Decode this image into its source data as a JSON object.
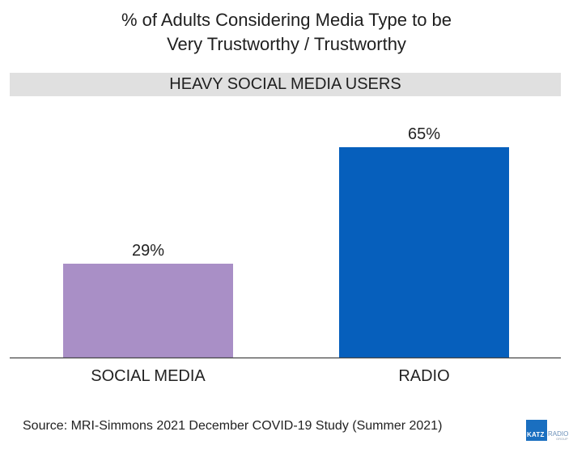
{
  "chart_data": {
    "type": "bar",
    "title_lines": [
      "% of Adults Considering Media Type to be",
      "Very Trustworthy / Trustworthy"
    ],
    "subtitle": "HEAVY SOCIAL MEDIA USERS",
    "categories": [
      "SOCIAL MEDIA",
      "RADIO"
    ],
    "values": [
      29,
      65
    ],
    "value_labels": [
      "29%",
      "65%"
    ],
    "colors": [
      "#a98fc6",
      "#065fbc"
    ],
    "ylim": [
      0,
      65
    ],
    "grid": false,
    "xlabel": "",
    "ylabel": ""
  },
  "source": "Source: MRI-Simmons 2021 December COVID-19 Study (Summer 2021)",
  "logo": {
    "brand": "KATZ",
    "name": "RADIO",
    "group": "GROUP",
    "color": "#1a6fc0"
  }
}
